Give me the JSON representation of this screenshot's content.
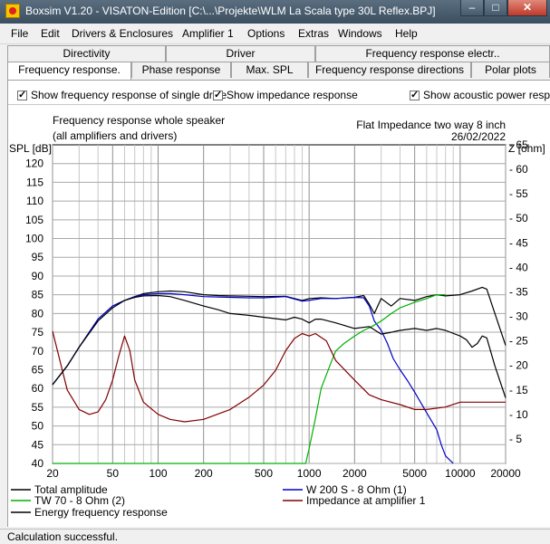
{
  "window": {
    "title": "Boxsim V1.20 - VISATON-Edition [C:\\...\\Projekte\\WLM La Scala type 30L Reflex.BPJ]",
    "minimize_glyph": "–",
    "maximize_glyph": "□",
    "close_glyph": "✕"
  },
  "menu": [
    "File",
    "Edit",
    "Drivers & Enclosures",
    "Amplifier 1",
    "Options",
    "Extras",
    "Windows",
    "Help"
  ],
  "tabs_row1": [
    "Directivity",
    "Driver",
    "Frequency response electr.."
  ],
  "tabs_row2": [
    "Frequency response.",
    "Phase response",
    "Max. SPL",
    "Frequency response directions",
    "Polar plots"
  ],
  "checkboxes": [
    {
      "label": "Show frequency response of single drive",
      "checked": true
    },
    {
      "label": "Show impedance response",
      "checked": true
    },
    {
      "label": "Show acoustic power respon",
      "checked": true
    }
  ],
  "chart_header": {
    "left_line1": "Frequency response whole speaker",
    "left_line2": "(all amplifiers and drivers)",
    "right_line1": "Flat Impedance two way 8 inch",
    "right_line2": "26/02/2022"
  },
  "legend": [
    {
      "label": "Total amplitude",
      "color": "#000000"
    },
    {
      "label": "W 200 S - 8 Ohm (1)",
      "color": "#0000cc"
    },
    {
      "label": "TW 70 - 8 Ohm (2)",
      "color": "#00b000"
    },
    {
      "label": "Impedance at amplifier 1",
      "color": "#800000"
    },
    {
      "label": "Energy frequency response",
      "color": "#000000"
    }
  ],
  "status": "Calculation successful.",
  "chart_data": {
    "type": "line",
    "ylabel_left": "SPL [dB]",
    "ylabel_right": "Z [ohm]",
    "x_scale": "log",
    "xlim": [
      20,
      20000
    ],
    "ylim_left": [
      40,
      125
    ],
    "ylim_right": [
      0,
      65
    ],
    "x_ticks": [
      20,
      50,
      100,
      200,
      500,
      1000,
      2000,
      5000,
      10000,
      20000
    ],
    "x_tick_labels": [
      "20",
      "50",
      "100",
      "200",
      "500",
      "1000",
      "2000",
      "5000",
      "10000",
      "20000"
    ],
    "y_left_ticks": [
      40,
      45,
      50,
      55,
      60,
      65,
      70,
      75,
      80,
      85,
      90,
      95,
      100,
      105,
      110,
      115,
      120
    ],
    "y_right_ticks": [
      5,
      10,
      15,
      20,
      25,
      30,
      35,
      40,
      45,
      50,
      55,
      60,
      65
    ],
    "grid": true,
    "series": [
      {
        "name": "Total amplitude",
        "axis": "left",
        "color": "#000000",
        "x": [
          20,
          25,
          30,
          40,
          50,
          60,
          70,
          80,
          100,
          120,
          150,
          200,
          250,
          300,
          400,
          500,
          700,
          900,
          1000,
          1200,
          1500,
          2000,
          2300,
          2500,
          2700,
          3000,
          3500,
          4000,
          5000,
          6000,
          7000,
          8000,
          10000,
          12000,
          14000,
          15000,
          17000,
          20000
        ],
        "y": [
          61,
          66,
          71,
          78.5,
          82,
          83.5,
          84.5,
          85.3,
          85.8,
          86,
          85.8,
          85,
          84.8,
          84.7,
          84.6,
          84.5,
          84.6,
          83.5,
          84,
          84.2,
          84,
          84.3,
          84.8,
          82.5,
          80,
          84,
          82,
          84,
          83.5,
          84.5,
          85,
          84.7,
          85,
          86,
          87,
          86.5,
          80,
          71.5
        ]
      },
      {
        "name": "W 200 S - 8 Ohm (1)",
        "axis": "left",
        "color": "#0000cc",
        "x": [
          20,
          25,
          30,
          40,
          50,
          60,
          70,
          80,
          100,
          120,
          150,
          200,
          250,
          300,
          400,
          500,
          700,
          900,
          1000,
          1200,
          1500,
          2000,
          2300,
          2500,
          2700,
          3000,
          3300,
          3600,
          4000,
          4500,
          5000,
          6000,
          7000,
          7500,
          8000,
          9000
        ],
        "y": [
          61,
          66,
          71,
          78.5,
          82,
          83.5,
          84.5,
          85,
          85.3,
          85.3,
          85,
          84.5,
          84.4,
          84.3,
          84.2,
          84.2,
          84.5,
          83.3,
          83.5,
          84,
          84,
          84.3,
          84.2,
          82,
          78,
          75.5,
          72,
          68,
          65,
          62,
          59,
          53.5,
          49,
          45,
          42,
          40
        ]
      },
      {
        "name": "TW 70 - 8 Ohm (2)",
        "axis": "left",
        "color": "#00b000",
        "x": [
          20,
          900,
          950,
          1000,
          1100,
          1200,
          1400,
          1500,
          1700,
          2000,
          2300,
          2600,
          3000,
          3500,
          4000,
          5000,
          6000,
          7000,
          8000
        ],
        "y": [
          40,
          40,
          40,
          44,
          52,
          60,
          67,
          70,
          72,
          74,
          75.5,
          76.5,
          78,
          80,
          81.5,
          83,
          84,
          85,
          85
        ]
      },
      {
        "name": "Impedance at amplifier 1",
        "axis": "right",
        "color": "#800000",
        "x": [
          20,
          25,
          30,
          35,
          40,
          45,
          50,
          55,
          60,
          65,
          70,
          80,
          100,
          120,
          150,
          200,
          300,
          400,
          500,
          600,
          700,
          800,
          900,
          1000,
          1100,
          1300,
          1500,
          2000,
          2500,
          3000,
          4000,
          5000,
          6000,
          8000,
          10000,
          15000,
          20000
        ],
        "y": [
          27,
          15,
          11,
          10,
          10.5,
          13,
          17,
          22,
          26,
          23,
          17,
          12.5,
          10,
          9,
          8.5,
          9,
          11,
          13.5,
          16,
          19,
          23,
          25.5,
          26.5,
          26,
          26.5,
          25,
          21,
          17,
          14,
          13,
          12,
          11,
          11,
          11.5,
          12.5,
          12.5,
          12.5
        ]
      },
      {
        "name": "Energy frequency response",
        "axis": "left",
        "color": "#000000",
        "x": [
          20,
          25,
          30,
          40,
          50,
          60,
          70,
          80,
          100,
          120,
          150,
          200,
          250,
          300,
          400,
          500,
          700,
          800,
          900,
          1000,
          1100,
          1200,
          1500,
          2000,
          2500,
          3000,
          3500,
          4000,
          5000,
          6000,
          7000,
          8000,
          10000,
          11000,
          12000,
          13000,
          14000,
          15000,
          17000,
          20000
        ],
        "y": [
          61,
          66,
          71,
          78,
          81.5,
          83.5,
          84.3,
          84.7,
          84.8,
          84.5,
          83.5,
          82,
          81,
          80,
          79.5,
          79,
          78.3,
          79,
          78.5,
          77.5,
          78.5,
          78.5,
          77.5,
          76,
          76.5,
          74.5,
          75,
          75.5,
          76,
          75.5,
          76,
          75.5,
          74,
          73,
          71,
          72,
          74,
          73.5,
          66,
          57.5
        ]
      }
    ]
  }
}
